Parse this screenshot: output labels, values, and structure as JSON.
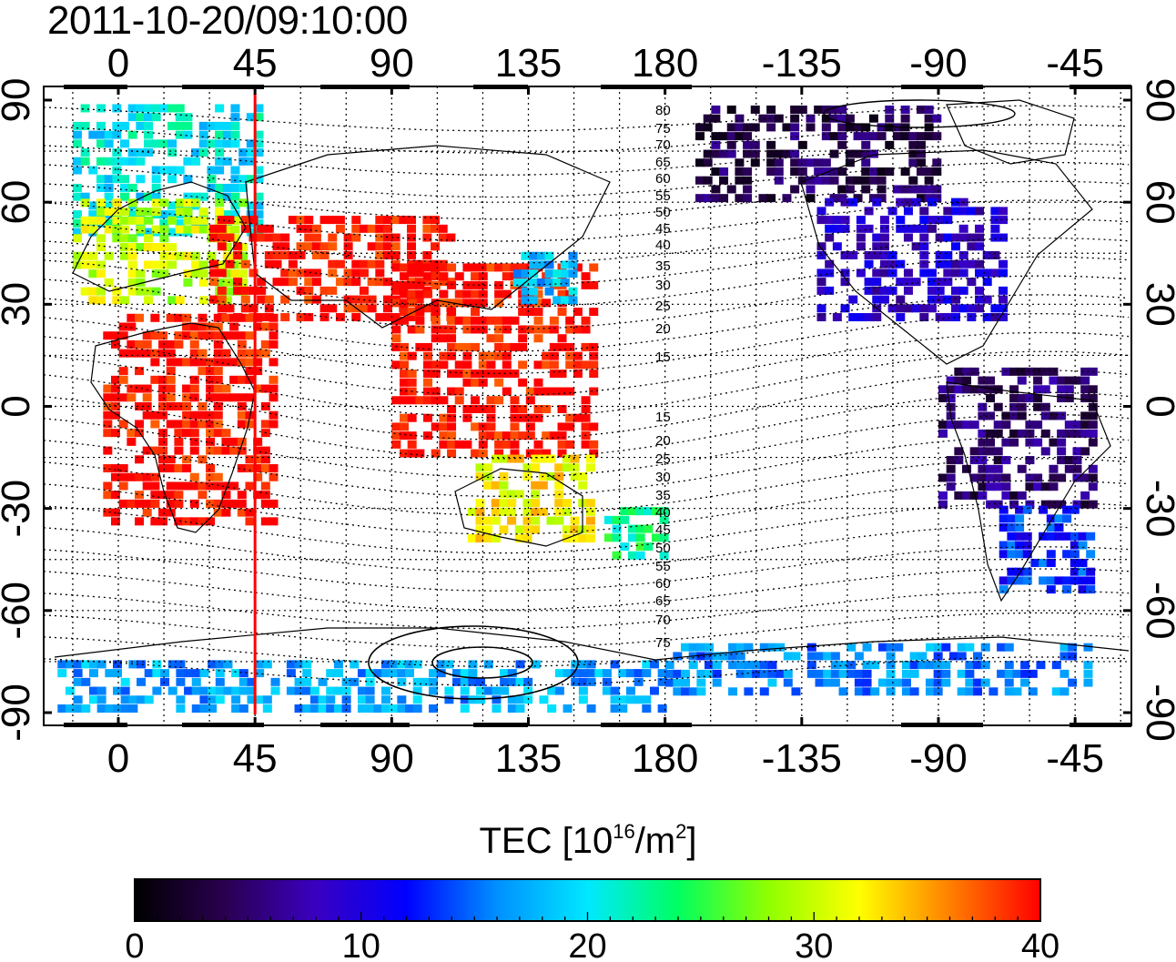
{
  "title": "2011-10-20/09:10:00",
  "top_axis_ticks": [
    "0",
    "45",
    "90",
    "135",
    "180",
    "-135",
    "-90",
    "-45"
  ],
  "bottom_axis_ticks": [
    "0",
    "45",
    "90",
    "135",
    "180",
    "-135",
    "-90",
    "-45"
  ],
  "left_axis_ticks": [
    "90",
    "60",
    "30",
    "0",
    "-30",
    "-60",
    "-90"
  ],
  "right_axis_ticks": [
    "90",
    "60",
    "30",
    "0",
    "-30",
    "-60",
    "-90"
  ],
  "magnetic_contour_labels": [
    "80",
    "75",
    "70",
    "65",
    "60",
    "55",
    "50",
    "45",
    "40",
    "35",
    "30",
    "25",
    "20",
    "15",
    "15",
    "20",
    "25",
    "30",
    "35",
    "40",
    "45",
    "50",
    "55",
    "60",
    "65",
    "70",
    "75"
  ],
  "marker_longitude": 45,
  "marker_color": "#ff0000",
  "colorbar": {
    "title_prefix": "TEC  [10",
    "title_exp1": "16",
    "title_mid": "/m",
    "title_exp2": "2",
    "title_suffix": "]",
    "ticks": [
      "0",
      "10",
      "20",
      "30",
      "40"
    ],
    "min": 0,
    "max": 40
  },
  "colormap": [
    "#000000",
    "#2a0050",
    "#3a00c0",
    "#0000ff",
    "#0090ff",
    "#00e8ff",
    "#00ff60",
    "#90ff00",
    "#ffff00",
    "#ff8000",
    "#ff0000"
  ],
  "chart_data": {
    "type": "heatmap",
    "title": "2011-10-20/09:10:00",
    "xlabel": "",
    "ylabel": "",
    "x_ticks": [
      0,
      45,
      90,
      135,
      180,
      -135,
      -90,
      -45
    ],
    "y_ticks": [
      90,
      60,
      30,
      0,
      -30,
      -60,
      -90
    ],
    "value_label": "TEC [10^16/m^2]",
    "value_range": [
      0,
      40
    ],
    "grid": true,
    "regions": [
      {
        "lon": [
          -15,
          45
        ],
        "lat": [
          50,
          88
        ],
        "tec": 20
      },
      {
        "lon": [
          -15,
          40
        ],
        "lat": [
          30,
          60
        ],
        "tec": 30
      },
      {
        "lon": [
          30,
          110
        ],
        "lat": [
          25,
          55
        ],
        "tec": 40
      },
      {
        "lon": [
          -5,
          50
        ],
        "lat": [
          -35,
          25
        ],
        "tec": 40
      },
      {
        "lon": [
          90,
          155
        ],
        "lat": [
          -15,
          40
        ],
        "tec": 40
      },
      {
        "lon": [
          115,
          155
        ],
        "lat": [
          -40,
          -15
        ],
        "tec": 32
      },
      {
        "lon": [
          160,
          180
        ],
        "lat": [
          -45,
          -30
        ],
        "tec": 23
      },
      {
        "lon": [
          130,
          150
        ],
        "lat": [
          30,
          45
        ],
        "tec": 18
      },
      {
        "lon": [
          -170,
          -90
        ],
        "lat": [
          60,
          88
        ],
        "tec": 4
      },
      {
        "lon": [
          -130,
          -70
        ],
        "lat": [
          25,
          60
        ],
        "tec": 9
      },
      {
        "lon": [
          -90,
          -40
        ],
        "lat": [
          -30,
          10
        ],
        "tec": 5
      },
      {
        "lon": [
          -70,
          -40
        ],
        "lat": [
          -55,
          -30
        ],
        "tec": 13
      },
      {
        "lon": [
          -20,
          180
        ],
        "lat": [
          -90,
          -75
        ],
        "tec": 17
      },
      {
        "lon": [
          -180,
          -40
        ],
        "lat": [
          -85,
          -72
        ],
        "tec": 16
      }
    ]
  }
}
